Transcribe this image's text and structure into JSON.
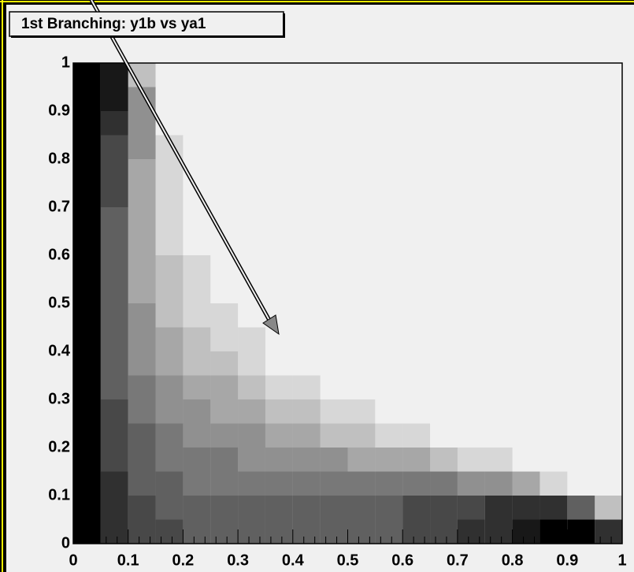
{
  "chart_data": {
    "type": "heatmap",
    "title": "1st Branching: y1b vs ya1",
    "xlim": [
      0,
      1
    ],
    "ylim": [
      0,
      1
    ],
    "xticks": [
      0,
      0.1,
      0.2,
      0.3,
      0.4,
      0.5,
      0.6,
      0.7,
      0.8,
      0.9,
      1
    ],
    "yticks": [
      0,
      0.1,
      0.2,
      0.3,
      0.4,
      0.5,
      0.6,
      0.7,
      0.8,
      0.9,
      1
    ],
    "xbins": [
      0,
      0.05,
      0.1,
      0.15,
      0.2,
      0.25,
      0.3,
      0.35,
      0.4,
      0.45,
      0.5,
      0.55,
      0.6,
      0.65,
      0.7,
      0.75,
      0.8,
      0.85,
      0.9,
      0.95,
      1
    ],
    "ybins": [
      0,
      0.05,
      0.1,
      0.15,
      0.2,
      0.25,
      0.3,
      0.35,
      0.4,
      0.45,
      0.5,
      0.55,
      0.6,
      0.65,
      0.7,
      0.75,
      0.8,
      0.85,
      0.9,
      0.95,
      1
    ],
    "color": "#000000",
    "z": [
      [
        10,
        8,
        7,
        7,
        6,
        6,
        6,
        6,
        6,
        6,
        6,
        6,
        7,
        7,
        8,
        8,
        9,
        10,
        10,
        8
      ],
      [
        10,
        8,
        7,
        6,
        6,
        6,
        6,
        6,
        6,
        6,
        6,
        6,
        7,
        7,
        7,
        8,
        8,
        8,
        6,
        2
      ],
      [
        10,
        8,
        6,
        6,
        5,
        5,
        5,
        5,
        5,
        5,
        5,
        5,
        5,
        5,
        4,
        4,
        3,
        1,
        0,
        0
      ],
      [
        10,
        7,
        6,
        5,
        5,
        5,
        4,
        4,
        4,
        4,
        3,
        3,
        3,
        2,
        1,
        1,
        0,
        0,
        0,
        0
      ],
      [
        10,
        7,
        6,
        5,
        4,
        4,
        4,
        3,
        3,
        2,
        2,
        1,
        1,
        0,
        0,
        0,
        0,
        0,
        0,
        0
      ],
      [
        10,
        7,
        5,
        4,
        4,
        3,
        3,
        2,
        2,
        1,
        1,
        0,
        0,
        0,
        0,
        0,
        0,
        0,
        0,
        0
      ],
      [
        10,
        6,
        5,
        4,
        3,
        3,
        2,
        1,
        1,
        0,
        0,
        0,
        0,
        0,
        0,
        0,
        0,
        0,
        0,
        0
      ],
      [
        10,
        6,
        4,
        3,
        2,
        2,
        1,
        0,
        0,
        0,
        0,
        0,
        0,
        0,
        0,
        0,
        0,
        0,
        0,
        0
      ],
      [
        10,
        6,
        4,
        3,
        2,
        1,
        1,
        0,
        0,
        0,
        0,
        0,
        0,
        0,
        0,
        0,
        0,
        0,
        0,
        0
      ],
      [
        10,
        6,
        4,
        2,
        1,
        1,
        0,
        0,
        0,
        0,
        0,
        0,
        0,
        0,
        0,
        0,
        0,
        0,
        0,
        0
      ],
      [
        10,
        6,
        3,
        2,
        1,
        0,
        0,
        0,
        0,
        0,
        0,
        0,
        0,
        0,
        0,
        0,
        0,
        0,
        0,
        0
      ],
      [
        10,
        6,
        3,
        2,
        1,
        0,
        0,
        0,
        0,
        0,
        0,
        0,
        0,
        0,
        0,
        0,
        0,
        0,
        0,
        0
      ],
      [
        10,
        6,
        3,
        1,
        0,
        0,
        0,
        0,
        0,
        0,
        0,
        0,
        0,
        0,
        0,
        0,
        0,
        0,
        0,
        0
      ],
      [
        10,
        6,
        3,
        1,
        0,
        0,
        0,
        0,
        0,
        0,
        0,
        0,
        0,
        0,
        0,
        0,
        0,
        0,
        0,
        0
      ],
      [
        10,
        7,
        3,
        1,
        0,
        0,
        0,
        0,
        0,
        0,
        0,
        0,
        0,
        0,
        0,
        0,
        0,
        0,
        0,
        0
      ],
      [
        10,
        7,
        3,
        1,
        0,
        0,
        0,
        0,
        0,
        0,
        0,
        0,
        0,
        0,
        0,
        0,
        0,
        0,
        0,
        0
      ],
      [
        10,
        7,
        4,
        1,
        0,
        0,
        0,
        0,
        0,
        0,
        0,
        0,
        0,
        0,
        0,
        0,
        0,
        0,
        0,
        0
      ],
      [
        10,
        8,
        4,
        0,
        0,
        0,
        0,
        0,
        0,
        0,
        0,
        0,
        0,
        0,
        0,
        0,
        0,
        0,
        0,
        0
      ],
      [
        10,
        9,
        4,
        0,
        0,
        0,
        0,
        0,
        0,
        0,
        0,
        0,
        0,
        0,
        0,
        0,
        0,
        0,
        0,
        0
      ],
      [
        10,
        9,
        2,
        0,
        0,
        0,
        0,
        0,
        0,
        0,
        0,
        0,
        0,
        0,
        0,
        0,
        0,
        0,
        0,
        0
      ]
    ]
  }
}
